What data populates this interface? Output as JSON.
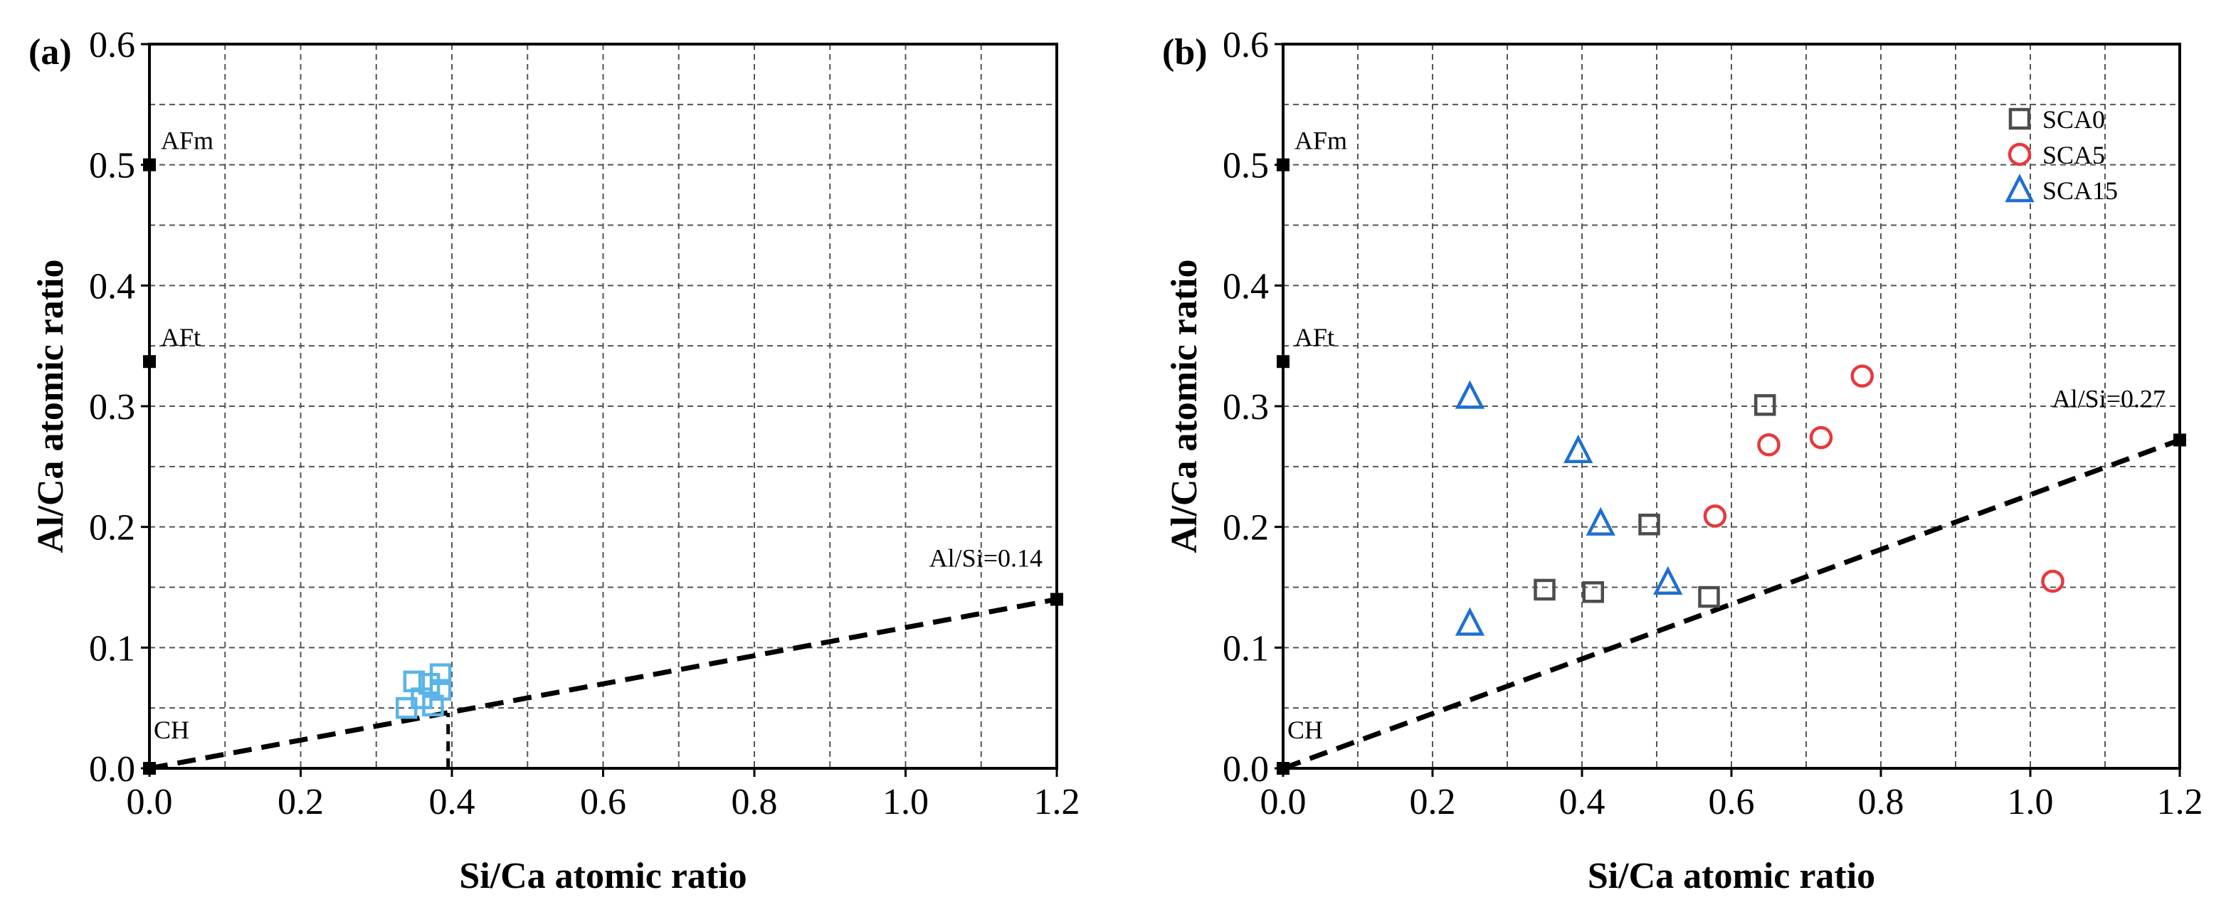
{
  "chart_data": [
    {
      "type": "scatter",
      "panel_label": "(a)",
      "xlabel": "Si/Ca atomic ratio",
      "ylabel": "Al/Ca atomic ratio",
      "xlim": [
        0,
        1.2
      ],
      "ylim": [
        0,
        0.6
      ],
      "xticks": [
        "0.0",
        "0.2",
        "0.4",
        "0.6",
        "0.8",
        "1.0",
        "1.2"
      ],
      "yticks": [
        "0.0",
        "0.1",
        "0.2",
        "0.3",
        "0.4",
        "0.5",
        "0.6"
      ],
      "grid": true,
      "reference_points": [
        {
          "label": "AFm",
          "x": 0,
          "y": 0.5
        },
        {
          "label": "AFt",
          "x": 0,
          "y": 0.337
        },
        {
          "label": "CH",
          "x": 0,
          "y": 0
        },
        {
          "label": "Al/Si=0.14",
          "x": 1.2,
          "y": 0.14
        }
      ],
      "reference_line": {
        "from": [
          0,
          0
        ],
        "to": [
          1.2,
          0.14
        ]
      },
      "vertical_marker": {
        "x": 0.395,
        "y_from": 0,
        "y_to": 0.046
      },
      "series": [
        {
          "name": "",
          "marker": "square",
          "color": "#5AB4E8",
          "points": [
            {
              "x": 0.34,
              "y": 0.05
            },
            {
              "x": 0.36,
              "y": 0.058
            },
            {
              "x": 0.35,
              "y": 0.072
            },
            {
              "x": 0.37,
              "y": 0.07
            },
            {
              "x": 0.385,
              "y": 0.065
            },
            {
              "x": 0.385,
              "y": 0.078
            },
            {
              "x": 0.375,
              "y": 0.052
            }
          ]
        }
      ]
    },
    {
      "type": "scatter",
      "panel_label": "(b)",
      "xlabel": "Si/Ca atomic ratio",
      "ylabel": "Al/Ca atomic ratio",
      "xlim": [
        0,
        1.2
      ],
      "ylim": [
        0,
        0.6
      ],
      "xticks": [
        "0.0",
        "0.2",
        "0.4",
        "0.6",
        "0.8",
        "1.0",
        "1.2"
      ],
      "yticks": [
        "0.0",
        "0.1",
        "0.2",
        "0.3",
        "0.4",
        "0.5",
        "0.6"
      ],
      "grid": true,
      "legend_position": "top-right",
      "reference_points": [
        {
          "label": "AFm",
          "x": 0,
          "y": 0.5
        },
        {
          "label": "AFt",
          "x": 0,
          "y": 0.337
        },
        {
          "label": "CH",
          "x": 0,
          "y": 0
        },
        {
          "label": "Al/Si=0.27",
          "x": 1.2,
          "y": 0.272
        }
      ],
      "reference_line": {
        "from": [
          0,
          0
        ],
        "to": [
          1.2,
          0.272
        ]
      },
      "series": [
        {
          "name": "SCA0",
          "marker": "square",
          "color": "#4D4D4D",
          "points": [
            {
              "x": 0.35,
              "y": 0.148
            },
            {
              "x": 0.415,
              "y": 0.146
            },
            {
              "x": 0.49,
              "y": 0.202
            },
            {
              "x": 0.57,
              "y": 0.142
            },
            {
              "x": 0.645,
              "y": 0.301
            }
          ]
        },
        {
          "name": "SCA5",
          "marker": "circle",
          "color": "#E8383D",
          "points": [
            {
              "x": 0.578,
              "y": 0.209
            },
            {
              "x": 0.65,
              "y": 0.268
            },
            {
              "x": 0.72,
              "y": 0.274
            },
            {
              "x": 0.775,
              "y": 0.325
            },
            {
              "x": 1.03,
              "y": 0.155
            }
          ]
        },
        {
          "name": "SCA15",
          "marker": "triangle",
          "color": "#1F6FD1",
          "points": [
            {
              "x": 0.25,
              "y": 0.308
            },
            {
              "x": 0.395,
              "y": 0.263
            },
            {
              "x": 0.425,
              "y": 0.203
            },
            {
              "x": 0.25,
              "y": 0.12
            },
            {
              "x": 0.515,
              "y": 0.154
            }
          ]
        }
      ]
    }
  ]
}
